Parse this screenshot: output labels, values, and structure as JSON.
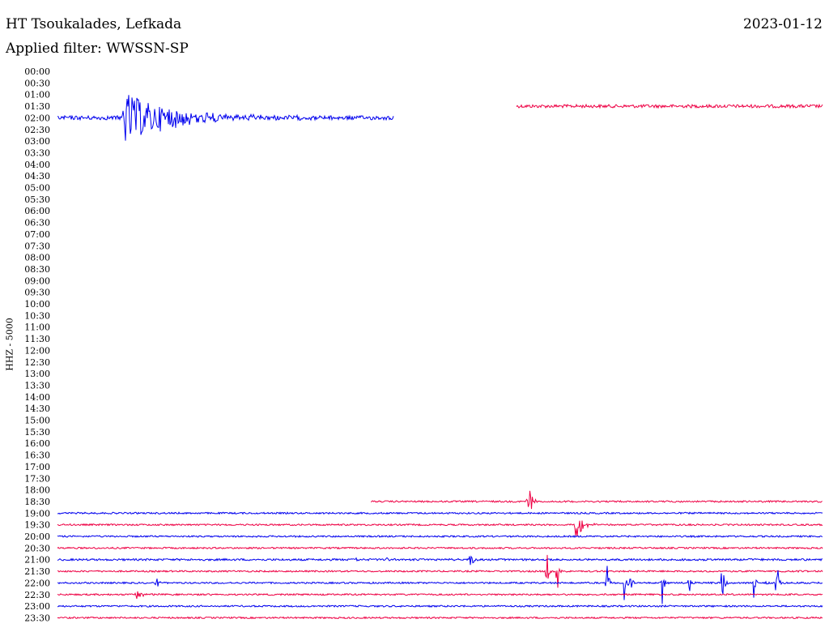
{
  "header": {
    "station": "HT Tsoukalades, Lefkada",
    "date": "2023-01-12",
    "filter": "Applied filter: WWSSN-SP"
  },
  "channel_label": "HHZ - 5000",
  "colors": {
    "trace_a": "#0000ee",
    "trace_b": "#ee0044"
  },
  "chart_data": {
    "type": "line",
    "title": "HT Tsoukalades, Lefkada",
    "subtitle": "Applied filter: WWSSN-SP",
    "ylabel": "HHZ - 5000",
    "row_labels": [
      "00:00",
      "00:30",
      "01:00",
      "01:30",
      "02:00",
      "02:30",
      "03:00",
      "03:30",
      "04:00",
      "04:30",
      "05:00",
      "05:30",
      "06:00",
      "06:30",
      "07:00",
      "07:30",
      "08:00",
      "08:30",
      "09:00",
      "09:30",
      "10:00",
      "10:30",
      "11:00",
      "11:30",
      "12:00",
      "12:30",
      "13:00",
      "13:30",
      "14:00",
      "14:30",
      "15:00",
      "15:30",
      "16:00",
      "16:30",
      "17:00",
      "17:30",
      "18:00",
      "18:30",
      "19:00",
      "19:30",
      "20:00",
      "20:30",
      "21:00",
      "21:30",
      "22:00",
      "22:30",
      "23:00",
      "23:30"
    ],
    "x_minutes_per_row": 30,
    "traces": [
      {
        "row": "01:30",
        "color": "trace_b",
        "start": 0.6,
        "end": 1.0,
        "noise": 2,
        "events": []
      },
      {
        "row": "02:00",
        "color": "trace_a",
        "start": 0.0,
        "end": 0.44,
        "noise": 2.5,
        "events": [
          {
            "x": 0.085,
            "amp": 34,
            "decay": 0.06
          }
        ]
      },
      {
        "row": "18:30",
        "color": "trace_b",
        "start": 0.41,
        "end": 1.0,
        "noise": 1,
        "events": [
          {
            "x": 0.615,
            "amp": 30,
            "decay": 0.004
          }
        ]
      },
      {
        "row": "19:00",
        "color": "trace_a",
        "start": 0.0,
        "end": 1.0,
        "noise": 1,
        "events": []
      },
      {
        "row": "19:30",
        "color": "trace_b",
        "start": 0.0,
        "end": 1.0,
        "noise": 1,
        "events": [
          {
            "x": 0.677,
            "amp": 20,
            "decay": 0.008
          }
        ]
      },
      {
        "row": "20:00",
        "color": "trace_a",
        "start": 0.0,
        "end": 1.0,
        "noise": 1,
        "events": []
      },
      {
        "row": "20:30",
        "color": "trace_b",
        "start": 0.0,
        "end": 1.0,
        "noise": 1,
        "events": []
      },
      {
        "row": "21:00",
        "color": "trace_a",
        "start": 0.0,
        "end": 1.0,
        "noise": 1.2,
        "events": [
          {
            "x": 0.54,
            "amp": 28,
            "decay": 0.002
          },
          {
            "x": 0.39,
            "amp": 4,
            "decay": 0.002
          },
          {
            "x": 0.43,
            "amp": 3,
            "decay": 0.002
          }
        ]
      },
      {
        "row": "21:30",
        "color": "trace_b",
        "start": 0.0,
        "end": 1.0,
        "noise": 1,
        "events": [
          {
            "x": 0.64,
            "amp": 30,
            "decay": 0.002
          },
          {
            "x": 0.653,
            "amp": 40,
            "decay": 0.002
          }
        ]
      },
      {
        "row": "22:00",
        "color": "trace_a",
        "start": 0.0,
        "end": 1.0,
        "noise": 1,
        "events": [
          {
            "x": 0.13,
            "amp": 6,
            "decay": 0.003
          },
          {
            "x": 0.718,
            "amp": 30,
            "decay": 0.002
          },
          {
            "x": 0.74,
            "amp": 40,
            "decay": 0.002
          },
          {
            "x": 0.75,
            "amp": 16,
            "decay": 0.002
          },
          {
            "x": 0.79,
            "amp": 40,
            "decay": 0.002
          },
          {
            "x": 0.826,
            "amp": 20,
            "decay": 0.002
          },
          {
            "x": 0.869,
            "amp": 40,
            "decay": 0.002
          },
          {
            "x": 0.91,
            "amp": 22,
            "decay": 0.002
          },
          {
            "x": 0.925,
            "amp": 18,
            "decay": 0.002
          },
          {
            "x": 0.94,
            "amp": 38,
            "decay": 0.002
          }
        ]
      },
      {
        "row": "22:30",
        "color": "trace_b",
        "start": 0.0,
        "end": 1.0,
        "noise": 1,
        "events": [
          {
            "x": 0.103,
            "amp": 7,
            "decay": 0.006
          }
        ]
      },
      {
        "row": "23:00",
        "color": "trace_a",
        "start": 0.0,
        "end": 1.0,
        "noise": 1,
        "events": []
      },
      {
        "row": "23:30",
        "color": "trace_b",
        "start": 0.0,
        "end": 1.0,
        "noise": 1,
        "events": []
      }
    ]
  }
}
